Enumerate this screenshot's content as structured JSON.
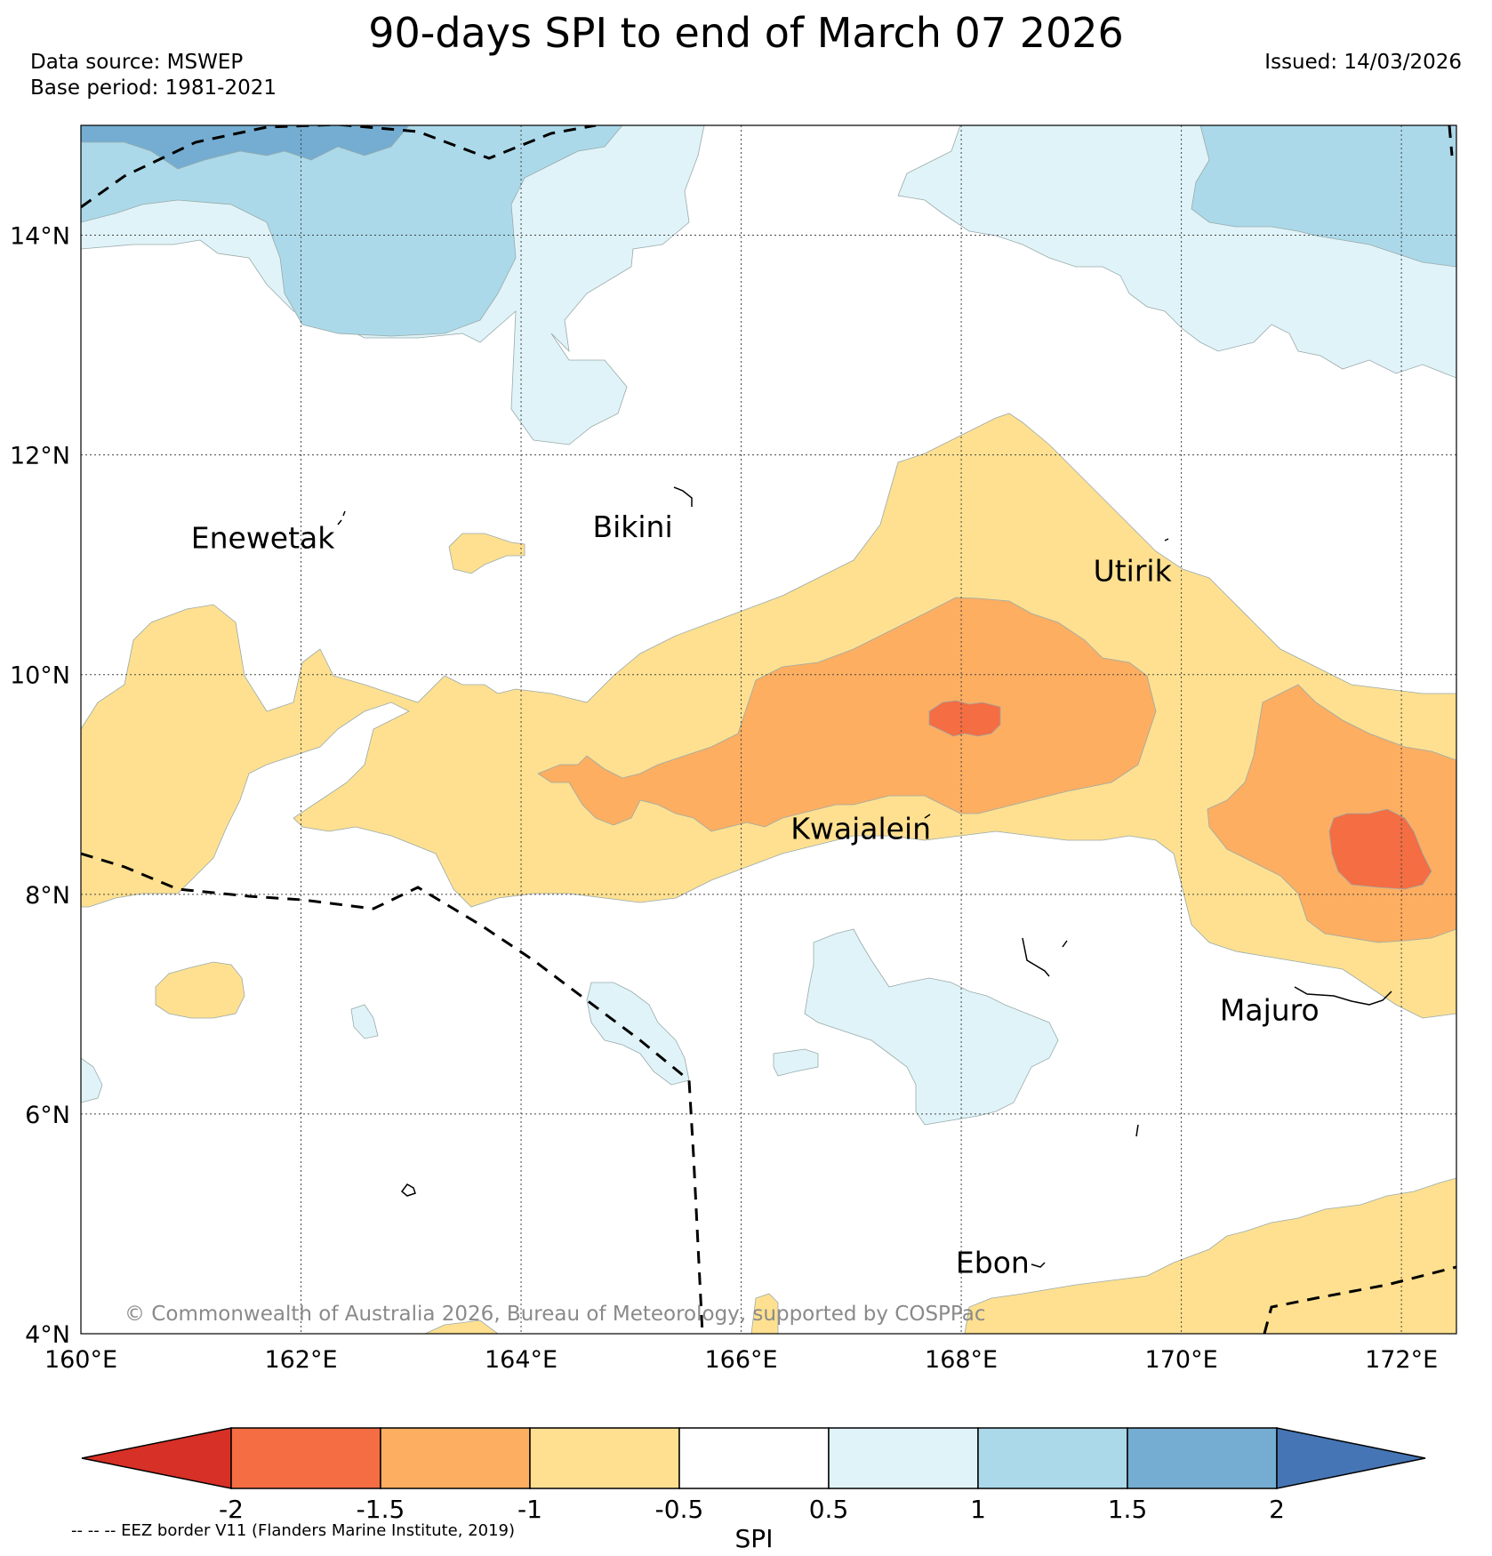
{
  "header": {
    "title": "90-days SPI to end of March 07 2026",
    "data_source": "Data source: MSWEP",
    "base_period": "Base period: 1981-2021",
    "issued": "Issued: 14/03/2026"
  },
  "map": {
    "lon_range": [
      160,
      172.5
    ],
    "lat_range": [
      4,
      15
    ],
    "lon_ticks": [
      {
        "value": 160,
        "label": "160°E"
      },
      {
        "value": 162,
        "label": "162°E"
      },
      {
        "value": 164,
        "label": "164°E"
      },
      {
        "value": 166,
        "label": "166°E"
      },
      {
        "value": 168,
        "label": "168°E"
      },
      {
        "value": 170,
        "label": "170°E"
      },
      {
        "value": 172,
        "label": "172°E"
      }
    ],
    "lat_ticks": [
      {
        "value": 14,
        "label": "14°N"
      },
      {
        "value": 12,
        "label": "12°N"
      },
      {
        "value": 10,
        "label": "10°N"
      },
      {
        "value": 8,
        "label": "8°N"
      },
      {
        "value": 6,
        "label": "6°N"
      },
      {
        "value": 4,
        "label": "4°N"
      }
    ],
    "places": [
      {
        "name": "Enewetak",
        "lon": 161.0,
        "lat": 11.25
      },
      {
        "name": "Bikini",
        "lon": 164.65,
        "lat": 11.35
      },
      {
        "name": "Utirik",
        "lon": 169.2,
        "lat": 10.95
      },
      {
        "name": "Kwajalein",
        "lon": 166.45,
        "lat": 8.6
      },
      {
        "name": "Majuro",
        "lon": 170.35,
        "lat": 6.95
      },
      {
        "name": "Ebon",
        "lon": 167.95,
        "lat": 4.65
      }
    ],
    "copyright": "© Commonwealth of Australia 2026, Bureau of Meteorology, supported by COSPPac"
  },
  "colorbar": {
    "label": "SPI",
    "ticks": [
      "-2",
      "-1.5",
      "-1",
      "-0.5",
      "0.5",
      "1",
      "1.5",
      "2"
    ],
    "colors": {
      "below_-2": "#d73027",
      "-2_-1.5": "#f46d43",
      "-1.5_-1": "#fdae61",
      "-1_-0.5": "#fee090",
      "-0.5_0.5": "#ffffff",
      "0.5_1": "#e0f3f8",
      "1_1.5": "#abd9e9",
      "1.5_2": "#74add1",
      "above_2": "#4575b4"
    }
  },
  "footnote": "-- -- -- EEZ border V11 (Flanders Marine Institute, 2019)"
}
